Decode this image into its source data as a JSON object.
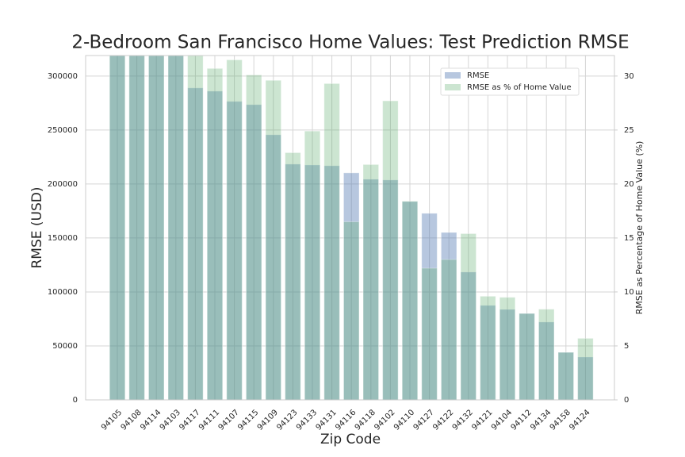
{
  "chart_data": {
    "type": "bar",
    "title": "2-Bedroom San Francisco Home Values: Test Prediction RMSE",
    "x_label": "Zip Code",
    "y_label": "RMSE (USD)",
    "y2_label": "RMSE as Percentage of Home Value (%)",
    "categories": [
      "94105",
      "94108",
      "94114",
      "94103",
      "94117",
      "94111",
      "94107",
      "94115",
      "94109",
      "94123",
      "94133",
      "94131",
      "94116",
      "94118",
      "94102",
      "94110",
      "94127",
      "94122",
      "94132",
      "94121",
      "94104",
      "94112",
      "94134",
      "94158",
      "94124"
    ],
    "series": [
      {
        "name": "RMSE",
        "color": "#4c72b0",
        "values": [
          340000,
          330000,
          325000,
          322000,
          289000,
          286000,
          276500,
          273500,
          245600,
          218400,
          217600,
          216900,
          210300,
          204400,
          203700,
          183800,
          172800,
          155100,
          118400,
          87500,
          83800,
          80100,
          72100,
          44100,
          39700
        ]
      },
      {
        "name": "RMSE as % of Home Value",
        "color": "#55a868",
        "axis": "y2",
        "values": [
          34,
          33,
          32.5,
          32.2,
          32.4,
          30.7,
          31.5,
          30.1,
          29.6,
          22.9,
          24.9,
          29.3,
          16.5,
          21.8,
          27.7,
          18.4,
          12.2,
          13.0,
          15.4,
          9.6,
          9.5,
          8.0,
          8.4,
          4.4,
          5.7
        ]
      }
    ],
    "ylim": [
      0,
      319000
    ],
    "yticks": [
      0,
      50000,
      100000,
      150000,
      200000,
      250000,
      300000
    ],
    "y2lim": [
      0,
      31.9
    ],
    "y2ticks": [
      0,
      5,
      10,
      15,
      20,
      25,
      30
    ],
    "grid": true,
    "legend": "upper right"
  }
}
